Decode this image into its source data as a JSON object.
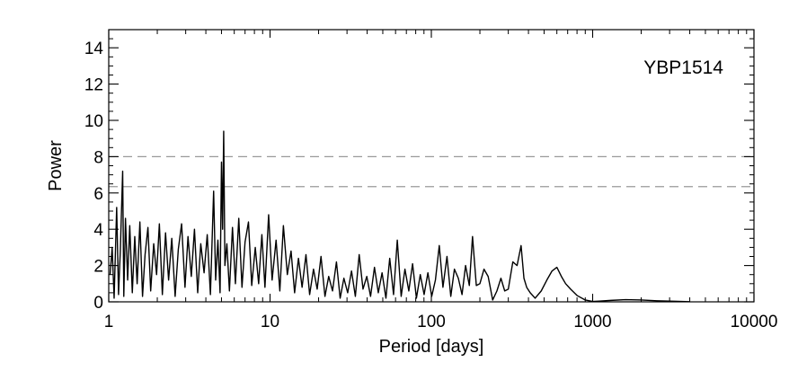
{
  "chart_data": {
    "type": "line",
    "title": "",
    "xlabel": "Period [days]",
    "ylabel": "Power",
    "x_scale": "log",
    "xlim": [
      1,
      10000
    ],
    "ylim": [
      0,
      15
    ],
    "x_ticks": [
      1,
      10,
      100,
      1000,
      10000
    ],
    "x_tick_labels": [
      "1",
      "10",
      "100",
      "1000",
      "10000"
    ],
    "y_ticks": [
      0,
      2,
      4,
      6,
      8,
      10,
      12,
      14
    ],
    "y_tick_labels": [
      "0",
      "2",
      "4",
      "6",
      "8",
      "10",
      "12",
      "14"
    ],
    "annotation": "YBP1514",
    "grid": false,
    "legend": "none",
    "reference_lines": [
      {
        "y": 8.0,
        "style": "dashed",
        "color": "#999999"
      },
      {
        "y": 6.35,
        "style": "dashed",
        "color": "#999999"
      }
    ],
    "series": [
      {
        "color": "#000000",
        "x": [
          1.02,
          1.05,
          1.08,
          1.12,
          1.15,
          1.18,
          1.22,
          1.24,
          1.27,
          1.31,
          1.35,
          1.4,
          1.45,
          1.5,
          1.56,
          1.62,
          1.68,
          1.75,
          1.82,
          1.9,
          1.98,
          2.06,
          2.15,
          2.25,
          2.35,
          2.46,
          2.58,
          2.7,
          2.83,
          2.97,
          3.1,
          3.25,
          3.4,
          3.56,
          3.72,
          3.9,
          4.08,
          4.27,
          4.47,
          4.6,
          4.75,
          4.9,
          5.0,
          5.08,
          5.16,
          5.25,
          5.4,
          5.6,
          5.85,
          6.1,
          6.4,
          6.7,
          7.0,
          7.35,
          7.7,
          8.1,
          8.5,
          8.9,
          9.3,
          9.8,
          10.3,
          10.9,
          11.5,
          12.1,
          12.8,
          13.5,
          14.2,
          15.0,
          15.8,
          16.7,
          17.6,
          18.6,
          19.6,
          20.7,
          21.9,
          23.1,
          24.4,
          25.8,
          27.2,
          28.7,
          30.3,
          32.0,
          33.8,
          35.7,
          37.7,
          39.8,
          42.0,
          44.4,
          46.9,
          49.5,
          52.3,
          55.2,
          58.3,
          61.5,
          65.0,
          68.6,
          72.5,
          76.5,
          80.8,
          85.4,
          90.2,
          95.2,
          100.5,
          106.0,
          112.0,
          118.0,
          125.0,
          132.0,
          139.0,
          147.0,
          155.0,
          163.0,
          172.0,
          180.0,
          190.0,
          200.0,
          212.0,
          225.0,
          240.0,
          255.0,
          270.0,
          285.0,
          300.0,
          320.0,
          340.0,
          360.0,
          375.0,
          390.0,
          410.0,
          440.0,
          480.0,
          520.0,
          560.0,
          600.0,
          640.0,
          680.0,
          730.0,
          800.0,
          900.0,
          1000.0,
          1100.0,
          1300.0,
          1600.0,
          2000.0,
          2500.0,
          3000.0,
          4000.0
        ],
        "y": [
          1.5,
          3.0,
          0.2,
          5.2,
          0.4,
          2.8,
          7.2,
          0.3,
          4.6,
          1.2,
          4.2,
          0.5,
          3.6,
          1.0,
          4.4,
          0.3,
          2.6,
          4.1,
          0.6,
          3.2,
          1.5,
          4.3,
          0.4,
          3.8,
          1.2,
          3.5,
          0.3,
          2.9,
          4.3,
          0.8,
          3.6,
          1.4,
          4.0,
          0.5,
          3.2,
          1.6,
          3.7,
          0.4,
          6.1,
          1.2,
          3.4,
          0.5,
          7.7,
          4.0,
          9.4,
          2.0,
          3.2,
          0.6,
          4.1,
          1.0,
          4.6,
          0.8,
          3.3,
          4.4,
          0.9,
          3.0,
          1.0,
          3.7,
          0.8,
          4.8,
          1.2,
          3.4,
          0.6,
          4.2,
          1.5,
          2.8,
          0.5,
          2.4,
          0.8,
          2.6,
          0.4,
          1.8,
          0.7,
          2.5,
          0.3,
          1.4,
          0.6,
          2.2,
          0.2,
          1.3,
          0.5,
          1.7,
          0.3,
          2.6,
          0.7,
          1.4,
          0.3,
          1.9,
          0.5,
          1.6,
          0.2,
          2.4,
          0.4,
          3.4,
          0.3,
          1.8,
          0.6,
          2.1,
          0.2,
          1.5,
          0.4,
          1.6,
          0.3,
          1.2,
          3.1,
          0.8,
          2.5,
          0.3,
          1.8,
          1.3,
          0.4,
          2.0,
          0.9,
          3.6,
          0.9,
          1.0,
          1.8,
          1.4,
          0.1,
          0.6,
          1.3,
          0.6,
          0.7,
          2.2,
          2.0,
          3.1,
          1.3,
          0.8,
          0.5,
          0.2,
          0.6,
          1.2,
          1.7,
          1.9,
          1.4,
          1.0,
          0.7,
          0.35,
          0.1,
          0.02,
          0.04,
          0.08,
          0.12,
          0.1,
          0.06,
          0.04,
          0.01
        ]
      }
    ]
  }
}
